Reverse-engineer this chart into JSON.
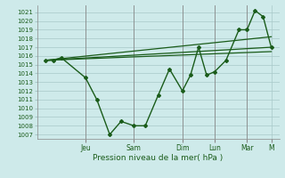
{
  "bg_color": "#ceeaea",
  "grid_color": "#a8c8c8",
  "line_color": "#1a5c1a",
  "xlabel": "Pression niveau de la mer( hPa )",
  "ylim": [
    1006.5,
    1021.8
  ],
  "yticks": [
    1007,
    1008,
    1009,
    1010,
    1011,
    1012,
    1013,
    1014,
    1015,
    1016,
    1017,
    1018,
    1019,
    1020,
    1021
  ],
  "xlim": [
    -1.5,
    13.5
  ],
  "day_labels": [
    "Jeu",
    "Sam",
    "Dim",
    "Lun",
    "Mar",
    "M"
  ],
  "day_positions": [
    1.5,
    4.5,
    7.5,
    9.5,
    11.5,
    13.0
  ],
  "detail_line": {
    "x": [
      -1.0,
      -0.5,
      0.0,
      1.5,
      2.2,
      3.0,
      3.7,
      4.5,
      5.2,
      6.0,
      6.7,
      7.5,
      8.0,
      8.5,
      9.0,
      9.5,
      10.2,
      11.0,
      11.5,
      12.0,
      12.5,
      13.0
    ],
    "y": [
      1015.5,
      1015.5,
      1015.8,
      1013.5,
      1011.0,
      1007.0,
      1008.5,
      1008.0,
      1008.0,
      1011.5,
      1014.5,
      1012.0,
      1013.8,
      1017.0,
      1013.8,
      1014.2,
      1015.5,
      1019.0,
      1019.0,
      1021.2,
      1020.5,
      1017.0
    ],
    "marker": "D",
    "markersize": 2.0,
    "linewidth": 1.0
  },
  "smooth_lines": [
    {
      "x": [
        -1.0,
        13.0
      ],
      "y": [
        1015.5,
        1017.0
      ],
      "linewidth": 0.9
    },
    {
      "x": [
        -1.0,
        13.0
      ],
      "y": [
        1015.5,
        1018.2
      ],
      "linewidth": 0.9
    },
    {
      "x": [
        -1.0,
        13.0
      ],
      "y": [
        1015.5,
        1016.5
      ],
      "linewidth": 0.9
    }
  ]
}
